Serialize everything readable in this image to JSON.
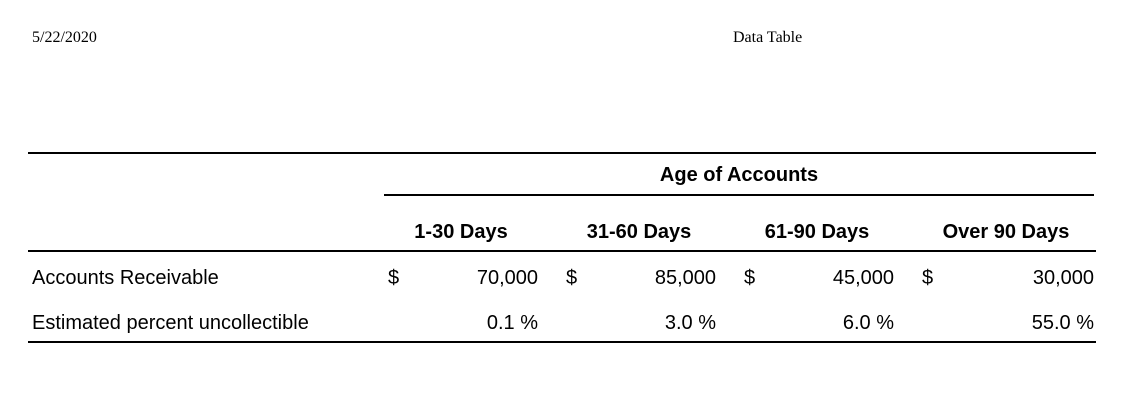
{
  "header": {
    "date": "5/22/2020",
    "title": "Data Table"
  },
  "table": {
    "group_header": "Age of Accounts",
    "columns": [
      "1-30 Days",
      "31-60 Days",
      "61-90 Days",
      "Over 90 Days"
    ],
    "rows": [
      {
        "label": "Accounts Receivable",
        "currency": "$",
        "values": [
          "70,000",
          "85,000",
          "45,000",
          "30,000"
        ]
      },
      {
        "label": "Estimated percent uncollectible",
        "values": [
          "0.1 %",
          "3.0 %",
          "6.0 %",
          "55.0 %"
        ]
      }
    ]
  }
}
